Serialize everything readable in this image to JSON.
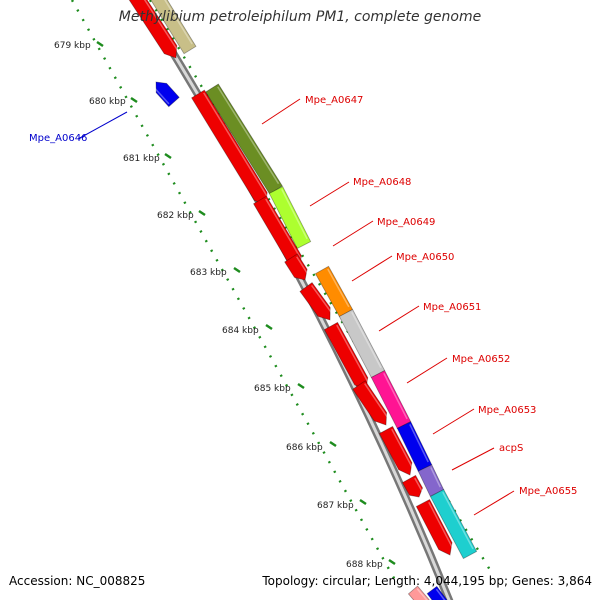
{
  "title": "Methylibium petroleiphilum PM1, complete genome",
  "footer": {
    "accession": "Accession: NC_008825",
    "summary": "Topology: circular; Length: 4,044,195 bp; Genes: 3,864"
  },
  "ruler": {
    "ticks": [
      "679 kbp",
      "680 kbp",
      "681 kbp",
      "682 kbp",
      "683 kbp",
      "684 kbp",
      "685 kbp",
      "686 kbp",
      "687 kbp",
      "688 kbp"
    ]
  },
  "colors": {
    "backbone": "#9a9a9a",
    "label_forward": "#dd0000",
    "label_reverse": "#0000cc",
    "tick_dots": "#1e8c1e",
    "cds": "#ee0000"
  },
  "labels": [
    {
      "name": "Mpe_A0647",
      "strand": "forward"
    },
    {
      "name": "Mpe_A0648",
      "strand": "forward"
    },
    {
      "name": "Mpe_A0649",
      "strand": "forward"
    },
    {
      "name": "Mpe_A0650",
      "strand": "forward"
    },
    {
      "name": "Mpe_A0651",
      "strand": "forward"
    },
    {
      "name": "Mpe_A0652",
      "strand": "forward"
    },
    {
      "name": "Mpe_A0653",
      "strand": "forward"
    },
    {
      "name": "acpS",
      "strand": "forward"
    },
    {
      "name": "Mpe_A0655",
      "strand": "forward"
    },
    {
      "name": "Mpe_A0646",
      "strand": "reverse"
    }
  ],
  "cog_colors": [
    "#c8bf88",
    "#6b8e23",
    "#adff2f",
    "#ff8c00",
    "#c8c8c8",
    "#ff1493",
    "#0000ee",
    "#8466cc",
    "#1ecfcf"
  ]
}
